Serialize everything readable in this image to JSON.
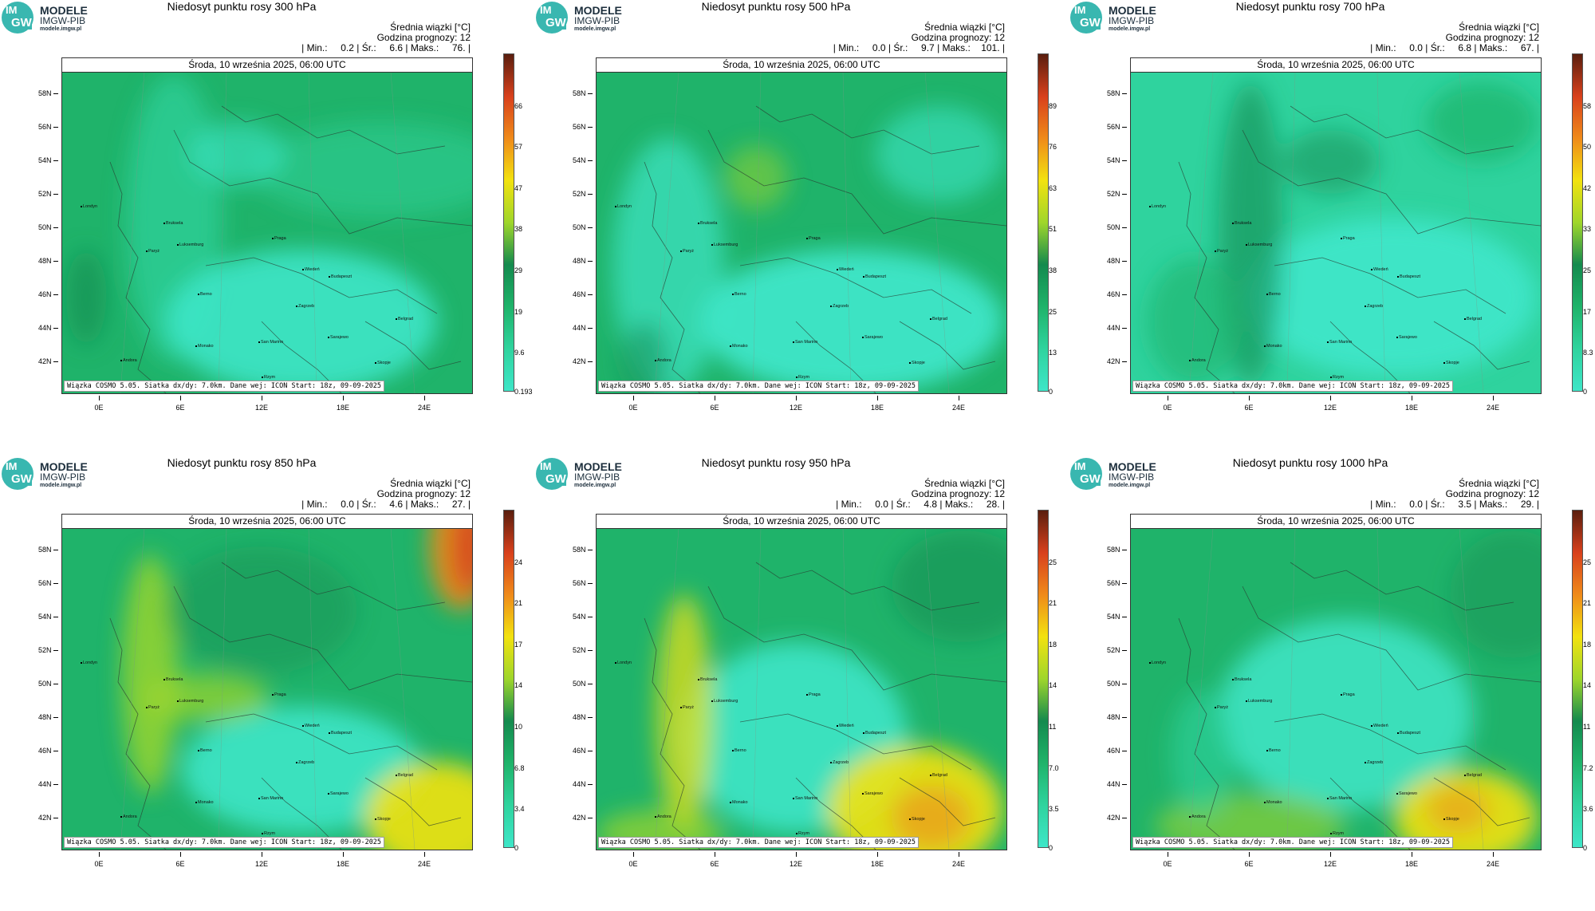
{
  "common": {
    "logo_line1": "MODELE",
    "logo_line2": "IMGW-PIB",
    "logo_line3": "modele.imgw.pl",
    "logo_im": "IM",
    "logo_gw": "GW",
    "header_line1": "Średnia wiązki [°C]",
    "header_line2": "Godzina prognozy: 12",
    "date": "Środa, 10 września 2025, 06:00 UTC",
    "footer": "Wiązka COSMO 5.05. Siatka dx/dy: 7.0km. Dane wej: ICON Start: 18z, 09-09-2025",
    "lat_labels": [
      "58N",
      "56N",
      "54N",
      "52N",
      "50N",
      "48N",
      "46N",
      "44N",
      "42N"
    ],
    "lon_labels": [
      "0E",
      "6E",
      "12E",
      "18E",
      "24E"
    ],
    "cities": [
      "Londyn",
      "Bruksela",
      "Paryż",
      "Luksemburg",
      "Praga",
      "Wiedeń",
      "Budapeszt",
      "Berno",
      "Zagrzeb",
      "Belgrad",
      "Monako",
      "San Marino",
      "Sarajewo",
      "Skopje",
      "Andora",
      "Rzym"
    ],
    "colors": {
      "turquoise": "#3ee6c8",
      "teal": "#2fd39e",
      "green": "#1fb36a",
      "green_dark": "#148a4e",
      "yellowgreen": "#9fd62b",
      "yellow": "#f2e20f",
      "orange": "#ef8a1a",
      "red": "#d8401c",
      "brown": "#5a1e0e"
    }
  },
  "panels": [
    {
      "title": "Niedosyt punktu rosy 300 hPa",
      "stats": "| Min.:     0.2 | Śr.:     6.6 | Maks.:     76. |",
      "colorbar_labels": [
        "66",
        "57",
        "47",
        "38",
        "29",
        "19",
        "9.6",
        "0.193"
      ]
    },
    {
      "title": "Niedosyt punktu rosy 500 hPa",
      "stats": "| Min.:     0.0 | Śr.:     9.7 | Maks.:    101. |",
      "colorbar_labels": [
        "89",
        "76",
        "63",
        "51",
        "38",
        "25",
        "13",
        "0"
      ]
    },
    {
      "title": "Niedosyt punktu rosy 700 hPa",
      "stats": "| Min.:     0.0 | Śr.:     6.8 | Maks.:     67. |",
      "colorbar_labels": [
        "58",
        "50",
        "42",
        "33",
        "25",
        "17",
        "8.3",
        "0"
      ]
    },
    {
      "title": "Niedosyt punktu rosy 850 hPa",
      "stats": "| Min.:     0.0 | Śr.:     4.6 | Maks.:     27. |",
      "colorbar_labels": [
        "24",
        "21",
        "17",
        "14",
        "10",
        "6.8",
        "3.4",
        "0"
      ]
    },
    {
      "title": "Niedosyt punktu rosy 950 hPa",
      "stats": "| Min.:     0.0 | Śr.:     4.8 | Maks.:     28. |",
      "colorbar_labels": [
        "25",
        "21",
        "18",
        "14",
        "11",
        "7.0",
        "3.5",
        "0"
      ]
    },
    {
      "title": "Niedosyt punktu rosy 1000 hPa",
      "stats": "| Min.:     0.0 | Śr.:     3.5 | Maks.:     29. |",
      "colorbar_labels": [
        "25",
        "21",
        "18",
        "14",
        "11",
        "7.2",
        "3.6",
        "0"
      ]
    }
  ]
}
